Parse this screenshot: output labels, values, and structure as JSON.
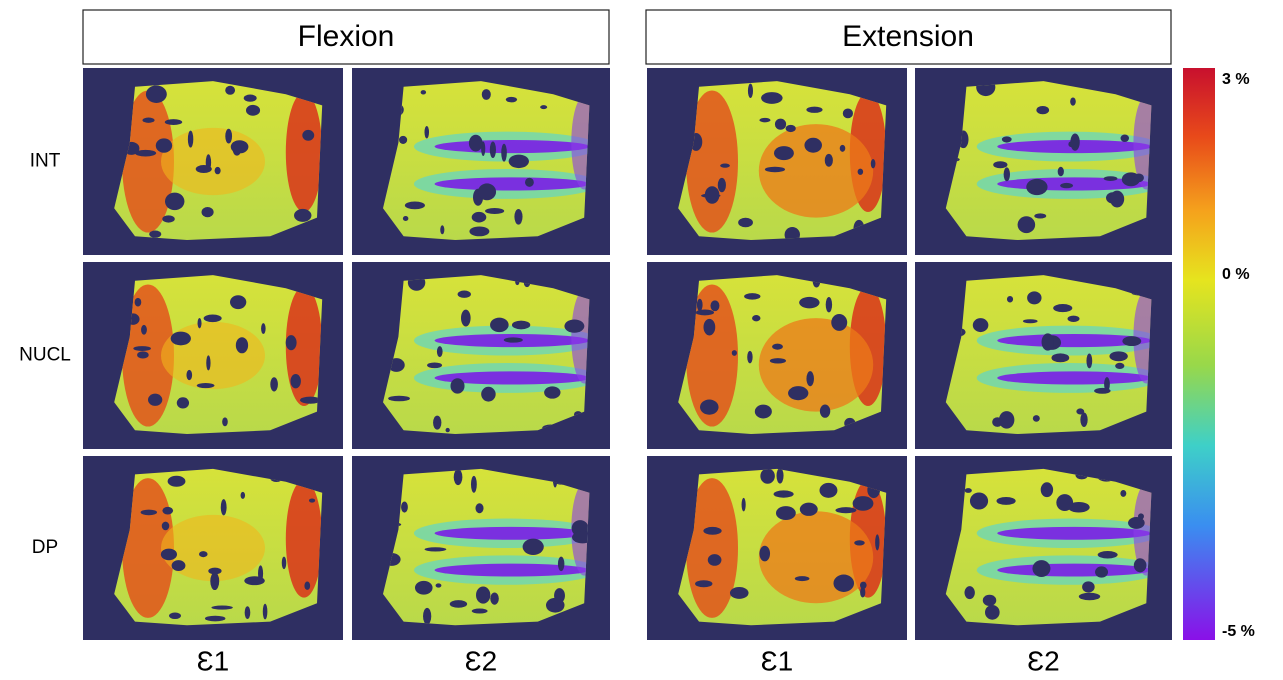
{
  "headers": [
    "Flexion",
    "Extension"
  ],
  "row_labels": [
    "INT",
    "NUCL",
    "DP"
  ],
  "column_labels": [
    "Ɛ1",
    "Ɛ2",
    "Ɛ1",
    "Ɛ2"
  ],
  "colorbar": {
    "labels": [
      "3 %",
      "0 %",
      "-5 %"
    ]
  }
}
